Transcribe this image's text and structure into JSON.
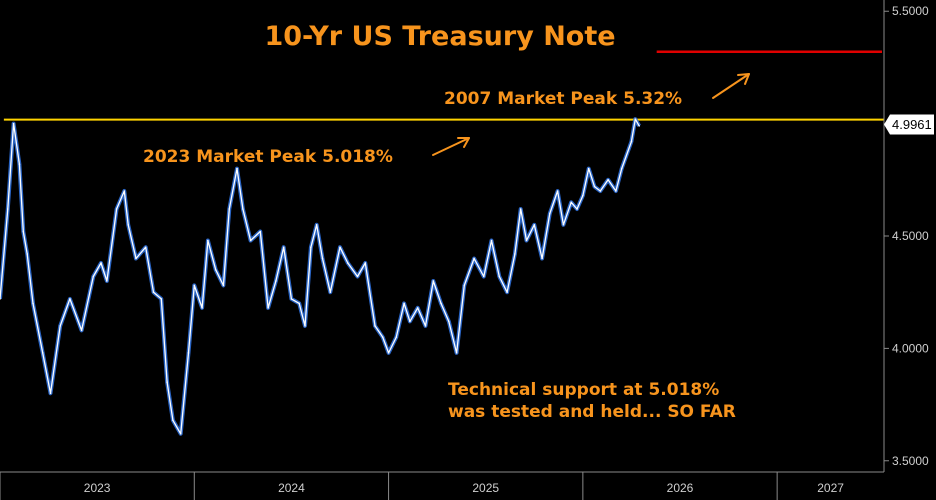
{
  "colors": {
    "background": "#000000",
    "price_line": "#ffffff",
    "price_shadow": "#2f6fd8",
    "peak_2023_line": "#ffd400",
    "peak_2007_line": "#e00000",
    "annotation": "#f7941d",
    "last_price_label_bg": "#ffffff",
    "last_price_label_fg": "#000000",
    "axis_text": "#cfcfcf",
    "axis_line": "#8a8a8a"
  },
  "chart_data": {
    "type": "line",
    "title": "10-Yr US Treasury Note",
    "xlabel": "",
    "ylabel": "",
    "x_unit": "year",
    "xlim": [
      2023.0,
      2027.55
    ],
    "ylim": [
      3.45,
      5.55
    ],
    "y_ticks": [
      3.5,
      4.0,
      4.5,
      5.0,
      5.5
    ],
    "y_tick_labels": [
      "3.5000",
      "4.0000",
      "4.5000",
      "5.0000",
      "5.5000"
    ],
    "x_ticks": [
      2023,
      2024,
      2025,
      2026,
      2027
    ],
    "x_tick_labels": [
      "2023",
      "2024",
      "2025",
      "2026",
      "2027"
    ],
    "grid": false,
    "last_value": 4.9961,
    "last_value_label": "4.9961",
    "reference_lines": [
      {
        "label": "2023 Market Peak 5.018%",
        "value": 5.018
      },
      {
        "label": "2007 Market Peak 5.32%",
        "value": 5.32
      }
    ],
    "annotations": [
      {
        "text": "Technical support at 5.018%"
      },
      {
        "text": "was tested and held... SO FAR"
      }
    ],
    "series": [
      {
        "x": [
          2023.0,
          2023.04,
          2023.07,
          2023.1,
          2023.12,
          2023.14,
          2023.17,
          2023.22,
          2023.26,
          2023.31,
          2023.36,
          2023.42,
          2023.48,
          2023.52,
          2023.55,
          2023.6,
          2023.64,
          2023.66,
          2023.7,
          2023.75,
          2023.79,
          2023.83,
          2023.86,
          2023.89,
          2023.93,
          2023.97,
          2024.0,
          2024.04,
          2024.07,
          2024.11,
          2024.15,
          2024.18,
          2024.22,
          2024.25,
          2024.29,
          2024.34,
          2024.38,
          2024.42,
          2024.46,
          2024.5,
          2024.54,
          2024.57,
          2024.6,
          2024.63,
          2024.66,
          2024.7,
          2024.75,
          2024.79,
          2024.84,
          2024.88,
          2024.93,
          2024.97,
          2025.0,
          2025.04,
          2025.08,
          2025.11,
          2025.15,
          2025.19,
          2025.23,
          2025.27,
          2025.31,
          2025.35,
          2025.39,
          2025.44,
          2025.49,
          2025.53,
          2025.57,
          2025.61,
          2025.65,
          2025.68,
          2025.71,
          2025.75,
          2025.79,
          2025.83,
          2025.87,
          2025.9,
          2025.94,
          2025.97,
          2026.0,
          2026.03,
          2026.06,
          2026.09,
          2026.13,
          2026.17,
          2026.2,
          2026.25,
          2026.27,
          2026.29
        ],
        "y": [
          4.22,
          4.62,
          5.0,
          4.82,
          4.52,
          4.42,
          4.2,
          3.98,
          3.8,
          4.1,
          4.22,
          4.08,
          4.32,
          4.38,
          4.3,
          4.62,
          4.7,
          4.55,
          4.4,
          4.45,
          4.25,
          4.22,
          3.85,
          3.68,
          3.62,
          3.98,
          4.28,
          4.18,
          4.48,
          4.35,
          4.28,
          4.62,
          4.8,
          4.62,
          4.48,
          4.52,
          4.18,
          4.3,
          4.45,
          4.22,
          4.2,
          4.1,
          4.45,
          4.55,
          4.4,
          4.25,
          4.45,
          4.38,
          4.32,
          4.38,
          4.1,
          4.05,
          3.98,
          4.05,
          4.2,
          4.12,
          4.18,
          4.1,
          4.3,
          4.2,
          4.12,
          3.98,
          4.28,
          4.4,
          4.32,
          4.48,
          4.32,
          4.25,
          4.42,
          4.62,
          4.48,
          4.55,
          4.4,
          4.6,
          4.7,
          4.55,
          4.65,
          4.62,
          4.68,
          4.8,
          4.72,
          4.7,
          4.75,
          4.7,
          4.8,
          4.92,
          5.02,
          4.99
        ]
      }
    ]
  }
}
